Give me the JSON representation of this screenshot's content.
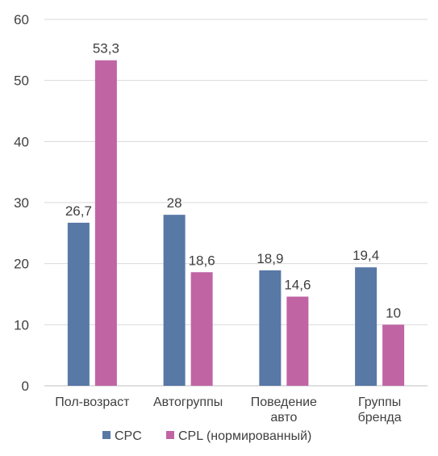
{
  "chart_data": {
    "type": "bar",
    "title": "",
    "xlabel": "",
    "ylabel": "",
    "categories": [
      "Пол-возраст",
      "Автогруппы",
      "Поведение\nавто",
      "Группы\nбренда"
    ],
    "series": [
      {
        "name": "CPC",
        "color": "#5878a6",
        "values": [
          26.7,
          28,
          18.9,
          19.4
        ],
        "labels": [
          "26,7",
          "28",
          "18,9",
          "19,4"
        ]
      },
      {
        "name": "CPL (нормированный)",
        "color": "#c064a4",
        "values": [
          53.3,
          18.6,
          14.6,
          10
        ],
        "labels": [
          "53,3",
          "18,6",
          "14,6",
          "10"
        ]
      }
    ],
    "ylim": [
      0,
      60
    ],
    "yticks": [
      "0",
      "10",
      "20",
      "30",
      "40",
      "50",
      "60"
    ],
    "grid": true,
    "legend": "bottom"
  }
}
